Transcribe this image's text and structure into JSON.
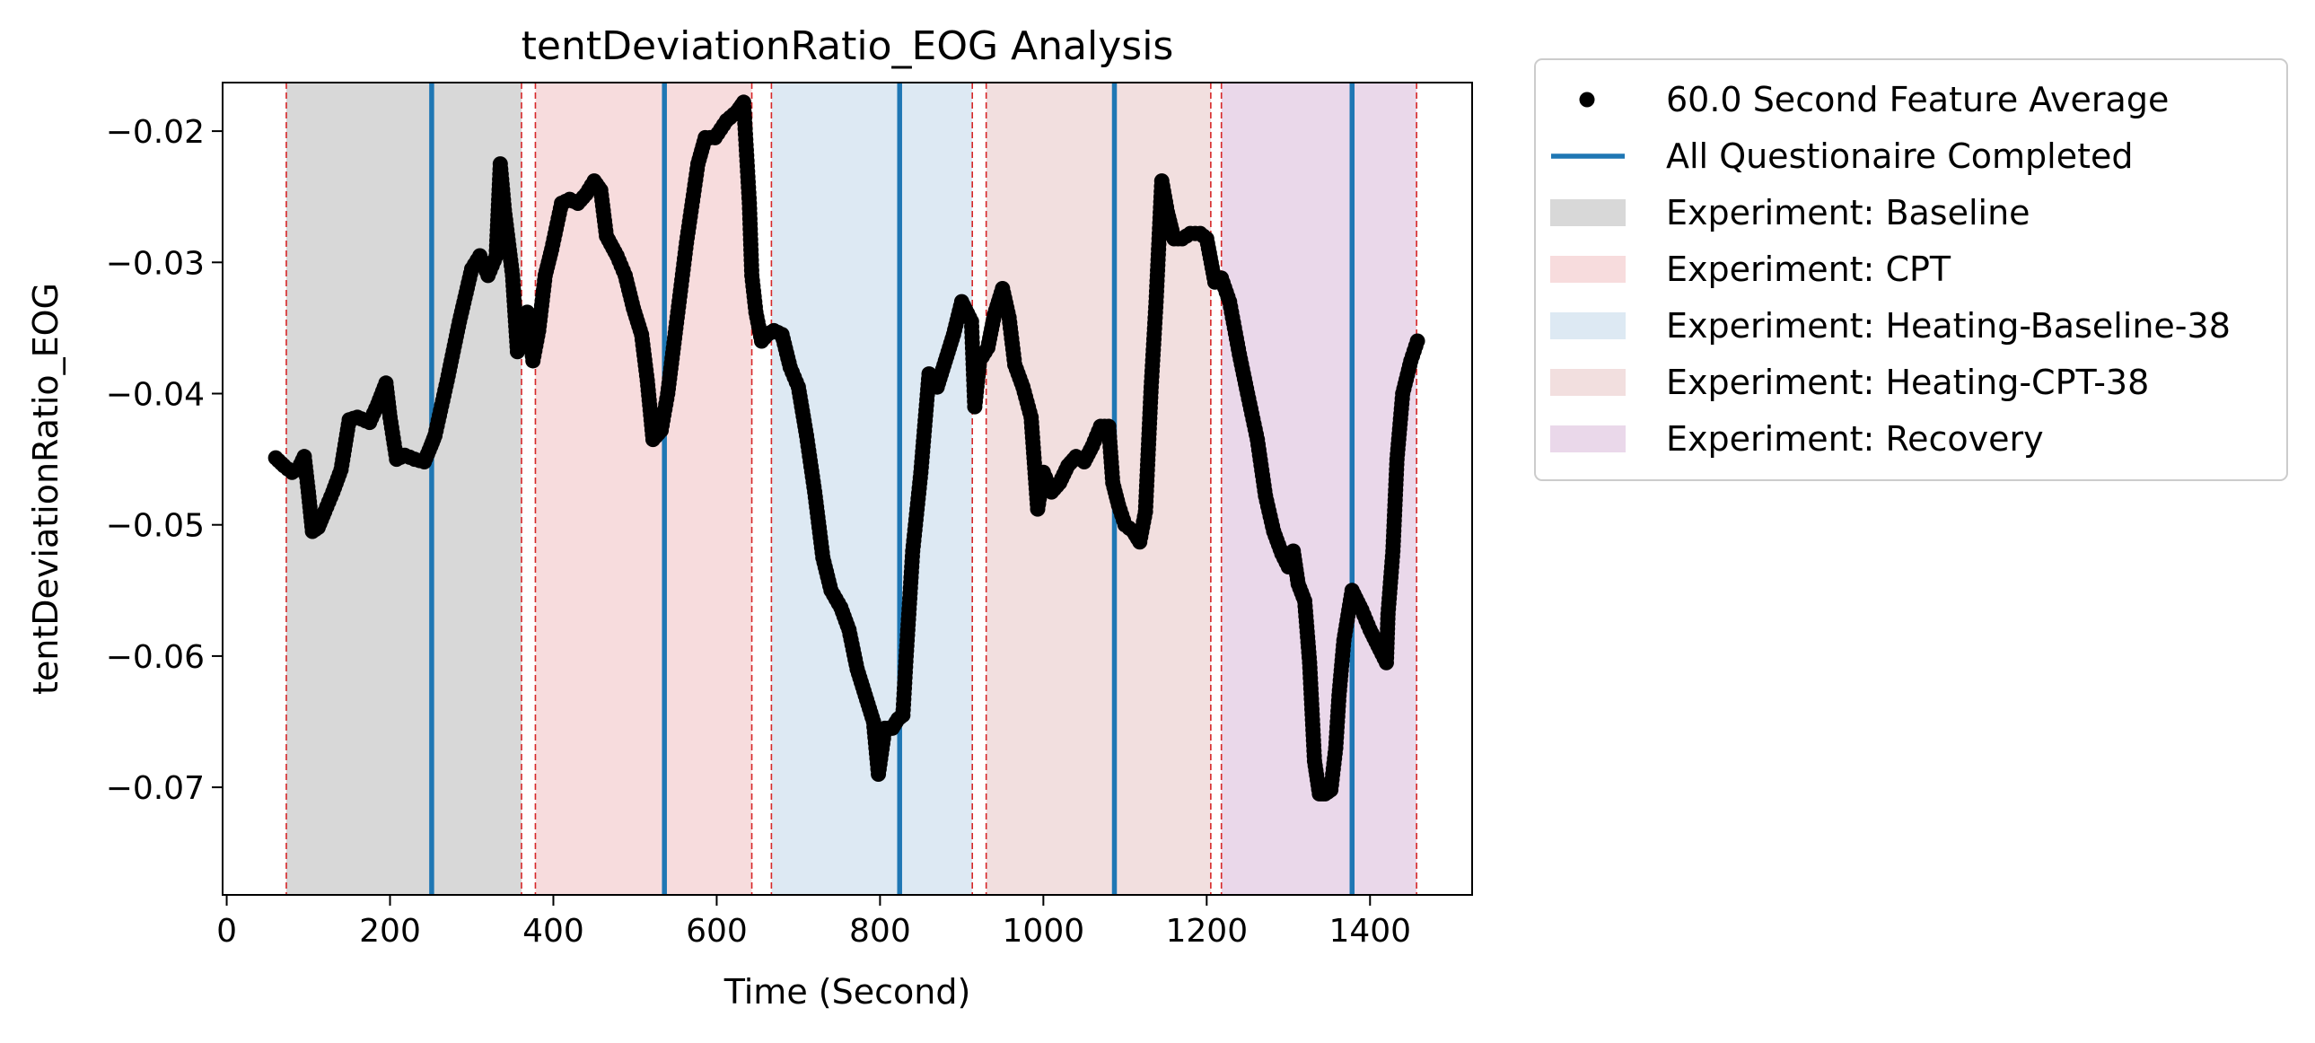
{
  "chart_data": {
    "type": "scatter",
    "title": "tentDeviationRatio_EOG Analysis",
    "xlabel": "Time (Second)",
    "ylabel": "tentDeviationRatio_EOG",
    "xlim": [
      -5,
      1525
    ],
    "ylim": [
      -0.0782,
      -0.0163
    ],
    "xticks": [
      0,
      200,
      400,
      600,
      800,
      1000,
      1200,
      1400
    ],
    "yticks": [
      -0.07,
      -0.06,
      -0.05,
      -0.04,
      -0.03,
      -0.02
    ],
    "xtick_labels": [
      "0",
      "200",
      "400",
      "600",
      "800",
      "1000",
      "1200",
      "1400"
    ],
    "ytick_labels": [
      "−0.07",
      "−0.06",
      "−0.05",
      "−0.04",
      "−0.03",
      "−0.02"
    ],
    "grid": false,
    "legend_position": "outside-right-top",
    "legend": [
      {
        "label": "60.0 Second Feature Average",
        "kind": "marker",
        "color": "#000000"
      },
      {
        "label": "All Questionaire Completed",
        "kind": "line",
        "color": "#1f77b4"
      },
      {
        "label": "Experiment: Baseline",
        "kind": "patch",
        "color": "#d8d8d8"
      },
      {
        "label": "Experiment: CPT",
        "kind": "patch",
        "color": "#f7dcdd"
      },
      {
        "label": "Experiment: Heating-Baseline-38",
        "kind": "patch",
        "color": "#dde9f3"
      },
      {
        "label": "Experiment: Heating-CPT-38",
        "kind": "patch",
        "color": "#f2dfdf"
      },
      {
        "label": "Experiment: Recovery",
        "kind": "patch",
        "color": "#ead8ea"
      }
    ],
    "phases": [
      {
        "name": "Experiment: Baseline",
        "start": 73,
        "end": 361,
        "color": "#d8d8d8"
      },
      {
        "name": "Experiment: CPT",
        "start": 378,
        "end": 643,
        "color": "#f7dcdd"
      },
      {
        "name": "Experiment: Heating-Baseline-38",
        "start": 667,
        "end": 913,
        "color": "#dde9f3"
      },
      {
        "name": "Experiment: Heating-CPT-38",
        "start": 930,
        "end": 1205,
        "color": "#f2dfdf"
      },
      {
        "name": "Experiment: Recovery",
        "start": 1218,
        "end": 1457,
        "color": "#ead8ea"
      }
    ],
    "phase_boundary_color": "#d62728",
    "questionnaire_times": [
      251,
      536,
      824,
      1087,
      1378
    ],
    "questionnaire_color": "#1f77b4",
    "series": [
      {
        "name": "60.0 Second Feature Average",
        "color": "#000000",
        "points": [
          [
            60,
            -0.0449
          ],
          [
            70,
            -0.0455
          ],
          [
            80,
            -0.046
          ],
          [
            88,
            -0.0457
          ],
          [
            95,
            -0.0448
          ],
          [
            100,
            -0.0475
          ],
          [
            105,
            -0.0505
          ],
          [
            112,
            -0.0502
          ],
          [
            120,
            -0.049
          ],
          [
            130,
            -0.0475
          ],
          [
            140,
            -0.0458
          ],
          [
            150,
            -0.042
          ],
          [
            160,
            -0.0418
          ],
          [
            175,
            -0.0422
          ],
          [
            185,
            -0.0408
          ],
          [
            195,
            -0.0392
          ],
          [
            200,
            -0.0418
          ],
          [
            208,
            -0.045
          ],
          [
            218,
            -0.0447
          ],
          [
            230,
            -0.045
          ],
          [
            242,
            -0.0452
          ],
          [
            250,
            -0.044
          ],
          [
            255,
            -0.0432
          ],
          [
            270,
            -0.039
          ],
          [
            285,
            -0.0345
          ],
          [
            300,
            -0.0305
          ],
          [
            310,
            -0.0295
          ],
          [
            320,
            -0.031
          ],
          [
            330,
            -0.0295
          ],
          [
            335,
            -0.0225
          ],
          [
            340,
            -0.026
          ],
          [
            350,
            -0.031
          ],
          [
            356,
            -0.0368
          ],
          [
            362,
            -0.0352
          ],
          [
            368,
            -0.0338
          ],
          [
            375,
            -0.0375
          ],
          [
            382,
            -0.0352
          ],
          [
            390,
            -0.031
          ],
          [
            398,
            -0.029
          ],
          [
            410,
            -0.0255
          ],
          [
            420,
            -0.0252
          ],
          [
            430,
            -0.0255
          ],
          [
            440,
            -0.0248
          ],
          [
            450,
            -0.0238
          ],
          [
            458,
            -0.0245
          ],
          [
            465,
            -0.028
          ],
          [
            478,
            -0.0295
          ],
          [
            488,
            -0.031
          ],
          [
            498,
            -0.0335
          ],
          [
            508,
            -0.0355
          ],
          [
            515,
            -0.039
          ],
          [
            522,
            -0.0435
          ],
          [
            532,
            -0.0428
          ],
          [
            540,
            -0.04
          ],
          [
            550,
            -0.035
          ],
          [
            563,
            -0.0285
          ],
          [
            577,
            -0.0225
          ],
          [
            586,
            -0.0205
          ],
          [
            598,
            -0.0205
          ],
          [
            612,
            -0.0192
          ],
          [
            625,
            -0.0185
          ],
          [
            633,
            -0.0178
          ],
          [
            640,
            -0.0255
          ],
          [
            643,
            -0.031
          ],
          [
            648,
            -0.0338
          ],
          [
            655,
            -0.036
          ],
          [
            662,
            -0.0355
          ],
          [
            670,
            -0.0352
          ],
          [
            680,
            -0.0355
          ],
          [
            690,
            -0.038
          ],
          [
            700,
            -0.0395
          ],
          [
            710,
            -0.0432
          ],
          [
            720,
            -0.0475
          ],
          [
            730,
            -0.0525
          ],
          [
            740,
            -0.055
          ],
          [
            752,
            -0.0563
          ],
          [
            762,
            -0.058
          ],
          [
            772,
            -0.061
          ],
          [
            782,
            -0.063
          ],
          [
            792,
            -0.065
          ],
          [
            798,
            -0.069
          ],
          [
            806,
            -0.0655
          ],
          [
            815,
            -0.0655
          ],
          [
            822,
            -0.0648
          ],
          [
            828,
            -0.0645
          ],
          [
            832,
            -0.06
          ],
          [
            840,
            -0.052
          ],
          [
            850,
            -0.046
          ],
          [
            860,
            -0.0385
          ],
          [
            870,
            -0.0395
          ],
          [
            880,
            -0.0375
          ],
          [
            890,
            -0.0355
          ],
          [
            900,
            -0.033
          ],
          [
            912,
            -0.0345
          ],
          [
            916,
            -0.041
          ],
          [
            922,
            -0.0375
          ],
          [
            932,
            -0.0365
          ],
          [
            940,
            -0.034
          ],
          [
            950,
            -0.032
          ],
          [
            958,
            -0.0342
          ],
          [
            965,
            -0.0378
          ],
          [
            975,
            -0.0395
          ],
          [
            985,
            -0.0418
          ],
          [
            993,
            -0.0488
          ],
          [
            1000,
            -0.046
          ],
          [
            1010,
            -0.0475
          ],
          [
            1020,
            -0.0468
          ],
          [
            1030,
            -0.0455
          ],
          [
            1040,
            -0.0448
          ],
          [
            1050,
            -0.0452
          ],
          [
            1060,
            -0.044
          ],
          [
            1070,
            -0.0425
          ],
          [
            1080,
            -0.0425
          ],
          [
            1085,
            -0.0468
          ],
          [
            1092,
            -0.0485
          ],
          [
            1100,
            -0.05
          ],
          [
            1110,
            -0.0505
          ],
          [
            1118,
            -0.0513
          ],
          [
            1125,
            -0.049
          ],
          [
            1132,
            -0.0395
          ],
          [
            1138,
            -0.033
          ],
          [
            1145,
            -0.0238
          ],
          [
            1152,
            -0.0262
          ],
          [
            1160,
            -0.0282
          ],
          [
            1170,
            -0.0282
          ],
          [
            1180,
            -0.0278
          ],
          [
            1192,
            -0.0278
          ],
          [
            1200,
            -0.0282
          ],
          [
            1210,
            -0.0315
          ],
          [
            1218,
            -0.0312
          ],
          [
            1228,
            -0.033
          ],
          [
            1240,
            -0.037
          ],
          [
            1250,
            -0.04
          ],
          [
            1262,
            -0.0435
          ],
          [
            1272,
            -0.0478
          ],
          [
            1282,
            -0.0505
          ],
          [
            1292,
            -0.0522
          ],
          [
            1300,
            -0.0532
          ],
          [
            1306,
            -0.052
          ],
          [
            1312,
            -0.0545
          ],
          [
            1320,
            -0.0558
          ],
          [
            1326,
            -0.0605
          ],
          [
            1332,
            -0.068
          ],
          [
            1338,
            -0.0705
          ],
          [
            1345,
            -0.0705
          ],
          [
            1352,
            -0.0702
          ],
          [
            1358,
            -0.067
          ],
          [
            1362,
            -0.063
          ],
          [
            1368,
            -0.0588
          ],
          [
            1378,
            -0.055
          ],
          [
            1390,
            -0.0565
          ],
          [
            1400,
            -0.058
          ],
          [
            1412,
            -0.0595
          ],
          [
            1420,
            -0.0605
          ],
          [
            1422,
            -0.0568
          ],
          [
            1428,
            -0.052
          ],
          [
            1433,
            -0.045
          ],
          [
            1440,
            -0.04
          ],
          [
            1450,
            -0.0375
          ],
          [
            1458,
            -0.036
          ]
        ]
      }
    ]
  }
}
